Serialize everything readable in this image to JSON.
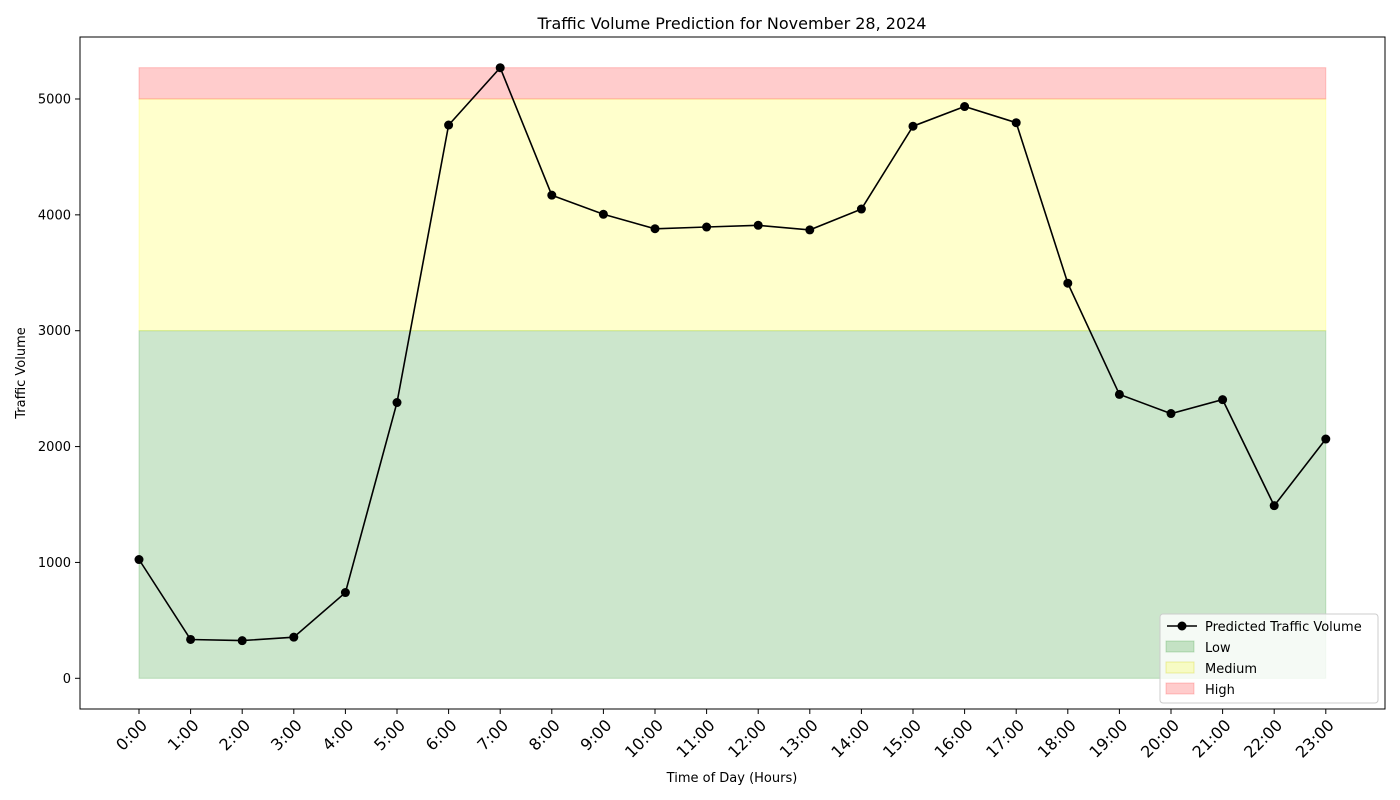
{
  "chart_data": {
    "type": "line",
    "title": "Traffic Volume Prediction for November 28, 2024",
    "xlabel": "Time of Day (Hours)",
    "ylabel": "Traffic Volume",
    "categories": [
      "0:00",
      "1:00",
      "2:00",
      "3:00",
      "4:00",
      "5:00",
      "6:00",
      "7:00",
      "8:00",
      "9:00",
      "10:00",
      "11:00",
      "12:00",
      "13:00",
      "14:00",
      "15:00",
      "16:00",
      "17:00",
      "18:00",
      "19:00",
      "20:00",
      "21:00",
      "22:00",
      "23:00"
    ],
    "series": [
      {
        "name": "Predicted Traffic Volume",
        "color": "#000000",
        "values": [
          1025,
          335,
          325,
          355,
          740,
          2380,
          4775,
          5270,
          4170,
          4005,
          3880,
          3895,
          3910,
          3870,
          4050,
          4765,
          4935,
          4795,
          3410,
          2450,
          2285,
          2405,
          1490,
          2065
        ]
      }
    ],
    "bands": [
      {
        "name": "Low",
        "from": 0,
        "to": 3000,
        "color": "#008000"
      },
      {
        "name": "Medium",
        "from": 3000,
        "to": 5000,
        "color": "#ffff00"
      },
      {
        "name": "High",
        "from": 5000,
        "to": 5270,
        "color": "#ff0000"
      }
    ],
    "yticks": [
      0,
      1000,
      2000,
      3000,
      4000,
      5000
    ],
    "ylim": [
      -265,
      5535
    ],
    "grid": false,
    "legend_position": "bottom-right",
    "legend": [
      "Predicted Traffic Volume",
      "Low",
      "Medium",
      "High"
    ]
  }
}
